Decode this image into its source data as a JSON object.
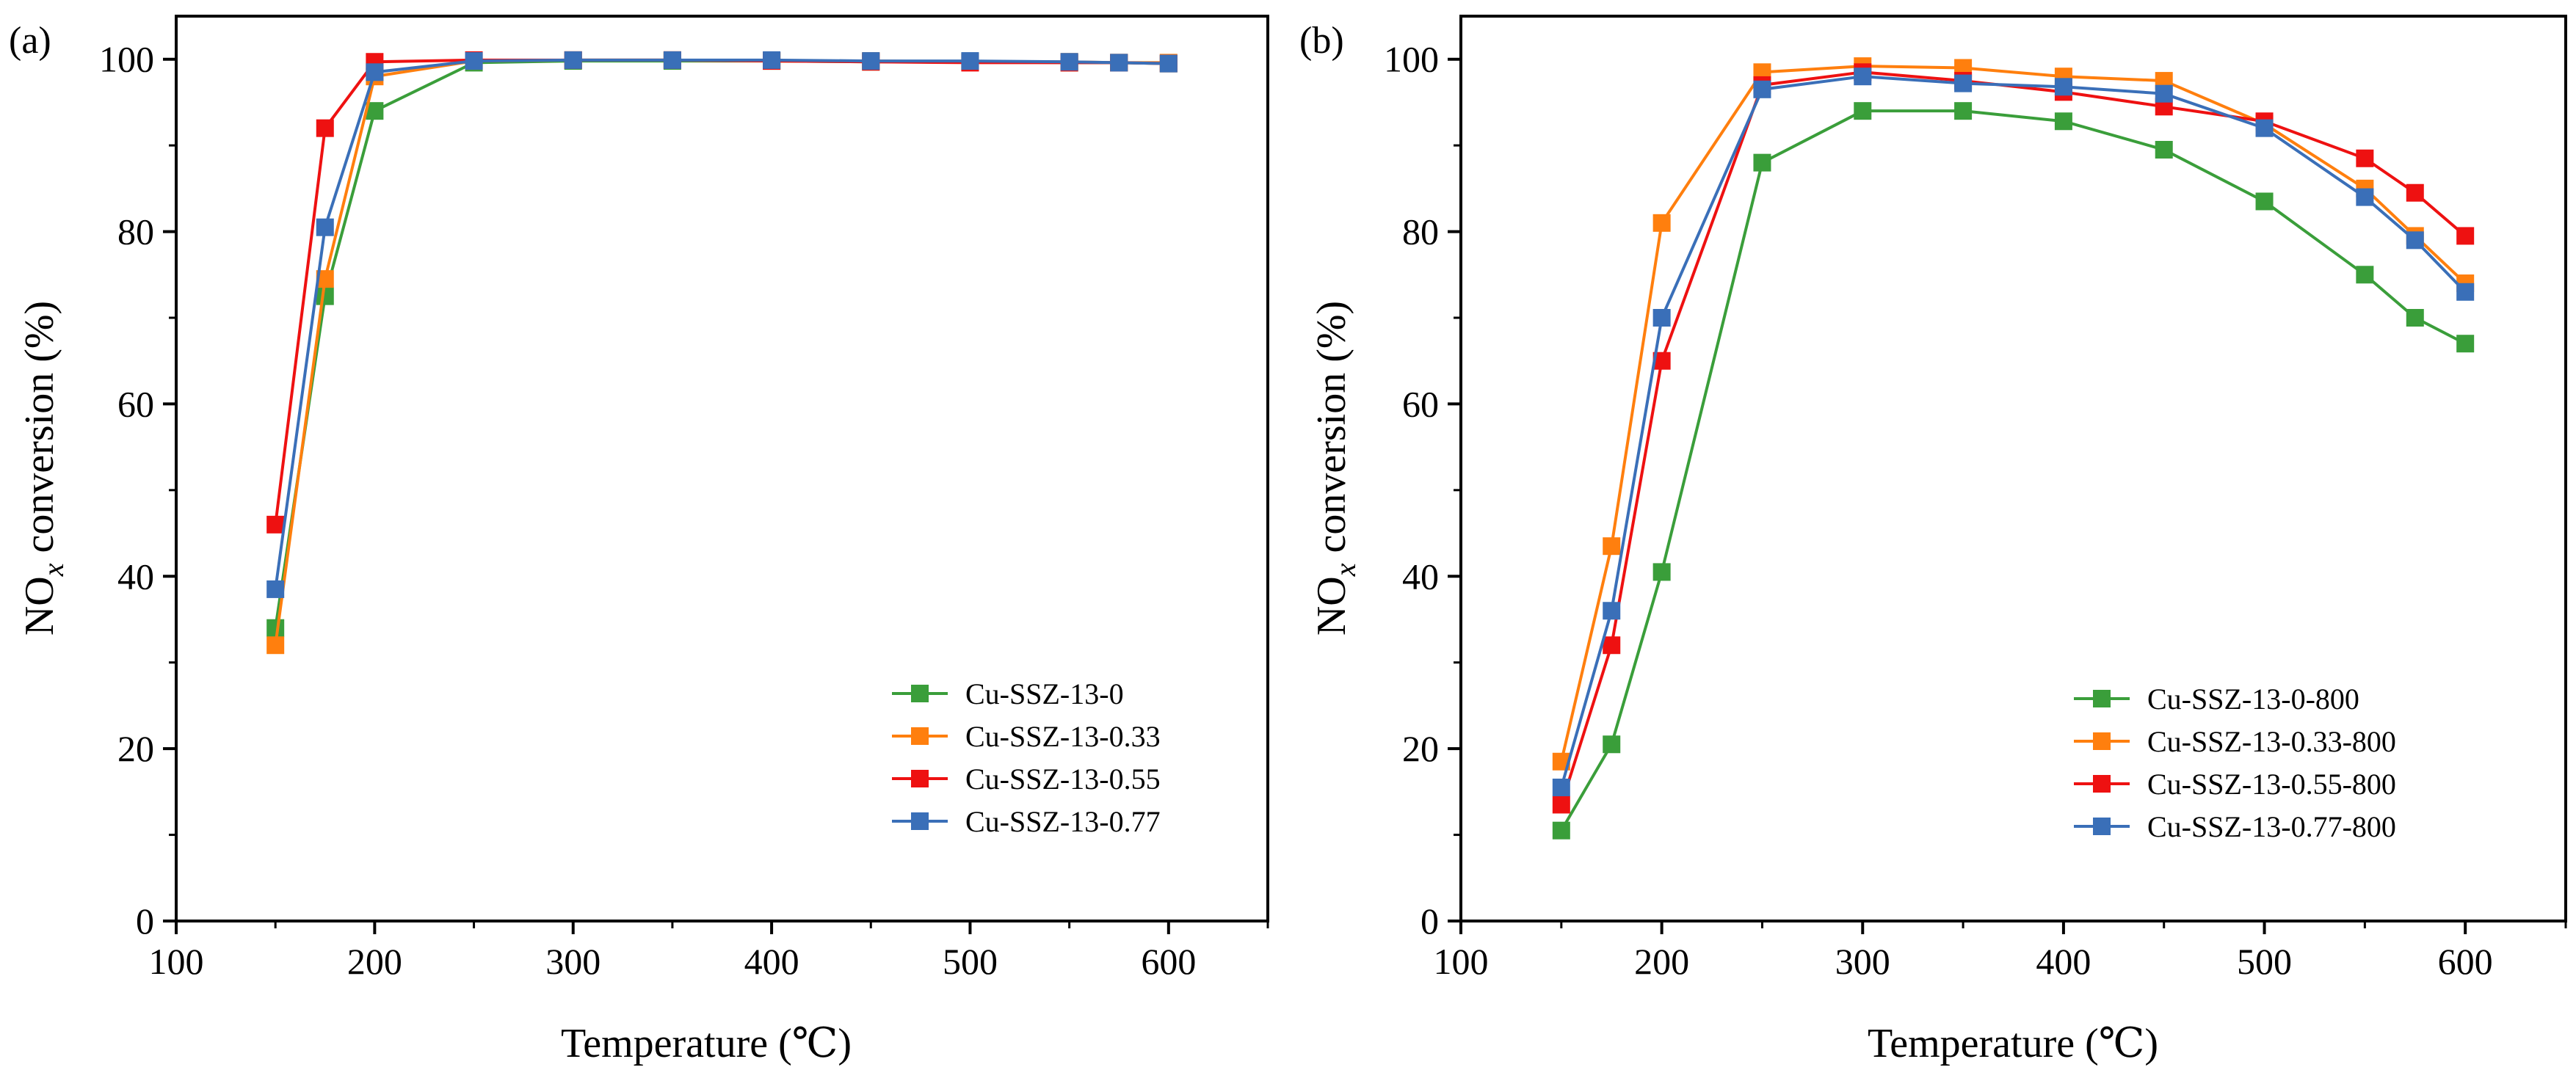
{
  "chart_data": [
    {
      "type": "line",
      "panel_label": "(a)",
      "xlabel": "Temperature (℃)",
      "ylabel_main": "NO",
      "ylabel_sub": "x",
      "ylabel_rest": " conversion (%)",
      "xlim": [
        100,
        650
      ],
      "ylim": [
        0,
        105
      ],
      "xticks": [
        100,
        200,
        300,
        400,
        500,
        600
      ],
      "yticks": [
        0,
        20,
        40,
        60,
        80,
        100
      ],
      "grid": false,
      "legend_position": "bottom-right",
      "x": [
        150,
        175,
        200,
        250,
        300,
        350,
        400,
        450,
        500,
        550,
        575,
        600
      ],
      "series": [
        {
          "name": "Cu-SSZ-13-0",
          "color": "#3a9e3a",
          "values": [
            34,
            72.5,
            94,
            99.6,
            99.8,
            99.8,
            99.8,
            99.7,
            99.7,
            99.6,
            99.6,
            99.5
          ]
        },
        {
          "name": "Cu-SSZ-13-0.33",
          "color": "#ff7f0e",
          "values": [
            32,
            74.5,
            98,
            99.8,
            99.9,
            99.9,
            99.8,
            99.8,
            99.7,
            99.7,
            99.6,
            99.6
          ]
        },
        {
          "name": "Cu-SSZ-13-0.55",
          "color": "#ee1111",
          "values": [
            46,
            92,
            99.7,
            99.9,
            99.9,
            99.9,
            99.8,
            99.7,
            99.6,
            99.6,
            99.6,
            99.5
          ]
        },
        {
          "name": "Cu-SSZ-13-0.77",
          "color": "#3a6fb8",
          "values": [
            38.5,
            80.5,
            98.5,
            99.8,
            99.9,
            99.9,
            99.9,
            99.8,
            99.8,
            99.7,
            99.6,
            99.5
          ]
        }
      ]
    },
    {
      "type": "line",
      "panel_label": "(b)",
      "xlabel": "Temperature (℃)",
      "ylabel_main": "NO",
      "ylabel_sub": "x",
      "ylabel_rest": " conversion (%)",
      "xlim": [
        100,
        650
      ],
      "ylim": [
        0,
        105
      ],
      "xticks": [
        100,
        200,
        300,
        400,
        500,
        600
      ],
      "yticks": [
        0,
        20,
        40,
        60,
        80,
        100
      ],
      "grid": false,
      "legend_position": "bottom-right",
      "x": [
        150,
        175,
        200,
        250,
        300,
        350,
        400,
        450,
        500,
        550,
        575,
        600
      ],
      "series": [
        {
          "name": "Cu-SSZ-13-0-800",
          "color": "#3a9e3a",
          "values": [
            10.5,
            20.5,
            40.5,
            88,
            94,
            94,
            92.8,
            89.5,
            83.5,
            75,
            70,
            67
          ]
        },
        {
          "name": "Cu-SSZ-13-0.33-800",
          "color": "#ff7f0e",
          "values": [
            18.5,
            43.5,
            81,
            98.5,
            99.2,
            99,
            98,
            97.5,
            92.5,
            85,
            79.5,
            74
          ]
        },
        {
          "name": "Cu-SSZ-13-0.55-800",
          "color": "#ee1111",
          "values": [
            13.5,
            32,
            65,
            97,
            98.5,
            97.5,
            96.2,
            94.5,
            92.8,
            88.5,
            84.5,
            79.5
          ]
        },
        {
          "name": "Cu-SSZ-13-0.77-800",
          "color": "#3a6fb8",
          "values": [
            15.5,
            36,
            70,
            96.5,
            98,
            97.2,
            96.8,
            96,
            92,
            84,
            79,
            73
          ]
        }
      ]
    }
  ]
}
